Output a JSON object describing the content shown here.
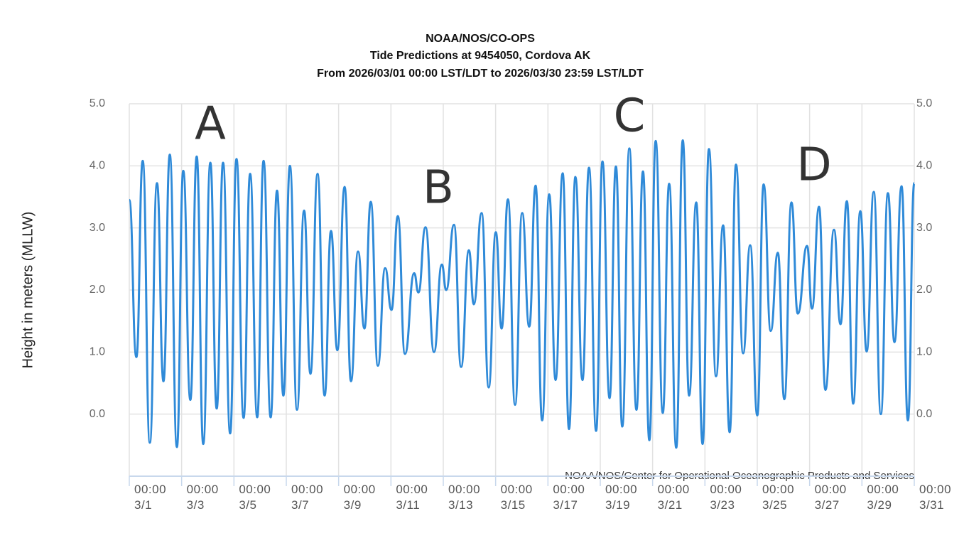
{
  "chart_data": {
    "type": "line",
    "title": [
      "NOAA/NOS/CO-OPS",
      "Tide Predictions at 9454050, Cordova AK",
      "From 2026/03/01 00:00 LST/LDT to 2026/03/30 23:59 LST/LDT"
    ],
    "y_label": "Height in meters (MLLW)",
    "credit": "NOAA/NOS/Center for Operational Oceanographic Products and Services",
    "annotations": [
      "A",
      "B",
      "C",
      "D"
    ],
    "xlim": [
      "3/1 00:00",
      "3/31 00:00"
    ],
    "xticks": [
      {
        "value": "3/1 00:00",
        "label": "00:00\n3/1"
      },
      {
        "value": "3/3 00:00",
        "label": "00:00\n3/3"
      },
      {
        "value": "3/5 00:00",
        "label": "00:00\n3/5"
      },
      {
        "value": "3/7 00:00",
        "label": "00:00\n3/7"
      },
      {
        "value": "3/9 00:00",
        "label": "00:00\n3/9"
      },
      {
        "value": "3/11 00:00",
        "label": "00:00\n3/11"
      },
      {
        "value": "3/13 00:00",
        "label": "00:00\n3/13"
      },
      {
        "value": "3/15 00:00",
        "label": "00:00\n3/15"
      },
      {
        "value": "3/17 00:00",
        "label": "00:00\n3/17"
      },
      {
        "value": "3/19 00:00",
        "label": "00:00\n3/19"
      },
      {
        "value": "3/21 00:00",
        "label": "00:00\n3/21"
      },
      {
        "value": "3/23 00:00",
        "label": "00:00\n3/23"
      },
      {
        "value": "3/25 00:00",
        "label": "00:00\n3/25"
      },
      {
        "value": "3/27 00:00",
        "label": "00:00\n3/27"
      },
      {
        "value": "3/29 00:00",
        "label": "00:00\n3/29"
      },
      {
        "value": "3/31 00:00",
        "label": "00:00\n3/31"
      }
    ],
    "ylim": [
      -1,
      5
    ],
    "yticks": [
      {
        "value": 0,
        "label": "0.0"
      },
      {
        "value": 1,
        "label": "1.0"
      },
      {
        "value": 2,
        "label": "2.0"
      },
      {
        "value": 3,
        "label": "3.0"
      },
      {
        "value": 4,
        "label": "4.0"
      },
      {
        "value": 5,
        "label": "5.0"
      }
    ],
    "grid": true,
    "color": "#2f8ad8",
    "x": [
      "3/1 00:00",
      "3/1 06:30",
      "3/1 12:20",
      "3/1 18:50",
      "3/2 01:25",
      "3/2 07:20",
      "3/2 13:10",
      "3/2 19:40",
      "3/3 01:30",
      "3/3 08:00",
      "3/3 13:50",
      "3/3 19:50",
      "3/4 02:20",
      "3/4 08:10",
      "3/4 14:00",
      "3/4 20:30",
      "3/5 02:20",
      "3/5 08:50",
      "3/5 14:50",
      "3/5 21:20",
      "3/6 03:10",
      "3/6 09:40",
      "3/6 15:30",
      "3/6 21:20",
      "3/7 03:20",
      "3/7 09:50",
      "3/7 16:20",
      "3/7 22:10",
      "3/8 04:40",
      "3/8 11:10",
      "3/8 17:00",
      "3/8 22:50",
      "3/9 05:30",
      "3/9 11:20",
      "3/9 17:50",
      "3/9 23:40",
      "3/10 05:30",
      "3/10 12:00",
      "3/10 18:40",
      "3/11 00:30",
      "3/11 06:20",
      "3/11 12:50",
      "3/11 21:20",
      "3/12 01:10",
      "3/12 07:40",
      "3/12 15:30",
      "3/12 22:40",
      "3/13 02:40",
      "3/13 09:50",
      "3/13 16:20",
      "3/13 23:30",
      "3/14 04:00",
      "3/14 11:10",
      "3/14 17:40",
      "3/15 00:10",
      "3/15 05:30",
      "3/15 11:20",
      "3/15 17:50",
      "3/16 00:20",
      "3/16 06:50",
      "3/16 12:40",
      "3/16 18:40",
      "3/17 01:10",
      "3/17 07:00",
      "3/17 13:30",
      "3/17 19:20",
      "3/18 01:10",
      "3/18 07:40",
      "3/18 13:40",
      "3/18 20:10",
      "3/19 02:00",
      "3/19 08:30",
      "3/19 14:20",
      "3/19 20:10",
      "3/20 02:40",
      "3/20 09:10",
      "3/20 15:10",
      "3/20 21:00",
      "3/21 02:50",
      "3/21 09:20",
      "3/21 15:10",
      "3/21 21:40",
      "3/22 03:40",
      "3/22 09:30",
      "3/22 16:00",
      "3/22 21:50",
      "3/23 03:40",
      "3/23 10:10",
      "3/23 16:40",
      "3/23 22:40",
      "3/24 04:30",
      "3/24 11:00",
      "3/24 17:30",
      "3/25 00:00",
      "3/25 05:50",
      "3/25 12:20",
      "3/25 18:50",
      "3/26 00:50",
      "3/26 07:20",
      "3/26 13:10",
      "3/26 21:40",
      "3/27 02:10",
      "3/27 08:40",
      "3/27 14:30",
      "3/27 22:20",
      "3/28 04:20",
      "3/28 10:10",
      "3/28 16:00",
      "3/28 22:30",
      "3/29 04:20",
      "3/29 10:50",
      "3/29 17:20",
      "3/29 23:50",
      "3/30 05:50",
      "3/30 12:20",
      "3/30 18:10",
      "3/31 00:00"
    ],
    "values": [
      3.45,
      0.92,
      4.08,
      -0.46,
      3.72,
      0.53,
      4.18,
      -0.53,
      3.92,
      0.23,
      4.15,
      -0.48,
      4.05,
      0.09,
      4.05,
      -0.31,
      4.11,
      -0.06,
      3.87,
      -0.05,
      4.08,
      -0.05,
      3.6,
      0.3,
      4.0,
      0.07,
      3.28,
      0.65,
      3.87,
      0.3,
      2.95,
      1.03,
      3.66,
      0.53,
      2.62,
      1.38,
      3.42,
      0.78,
      2.35,
      1.68,
      3.19,
      0.97,
      2.27,
      1.96,
      3.01,
      1.0,
      2.41,
      2.0,
      3.05,
      0.76,
      2.64,
      1.77,
      3.24,
      0.43,
      2.93,
      1.38,
      3.46,
      0.15,
      3.24,
      1.41,
      3.68,
      -0.1,
      3.54,
      0.55,
      3.88,
      -0.24,
      3.82,
      0.55,
      3.97,
      -0.27,
      4.07,
      0.26,
      3.99,
      -0.2,
      4.28,
      0.07,
      3.91,
      -0.42,
      4.4,
      0.02,
      3.71,
      -0.54,
      4.41,
      0.3,
      3.41,
      -0.48,
      4.27,
      0.61,
      3.04,
      -0.29,
      4.02,
      0.98,
      2.72,
      -0.02,
      3.7,
      1.34,
      2.6,
      0.24,
      3.41,
      1.62,
      2.71,
      1.7,
      3.34,
      0.39,
      2.97,
      1.45,
      3.43,
      0.17,
      3.27,
      1.01,
      3.58,
      0.0,
      3.56,
      1.16,
      3.67,
      -0.1,
      3.72
    ]
  }
}
